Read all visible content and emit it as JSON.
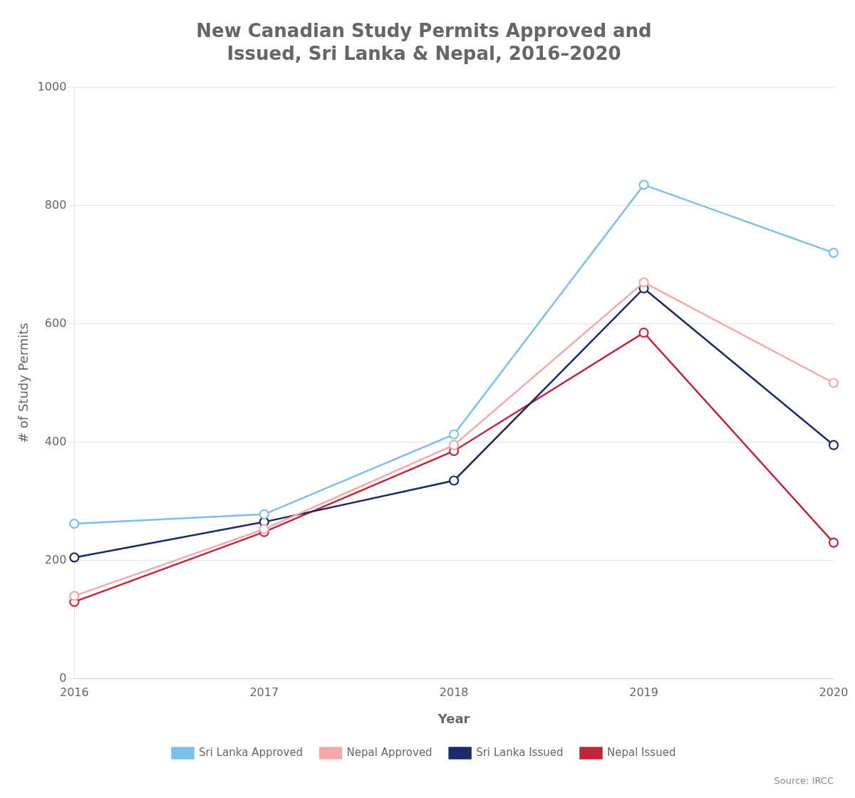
{
  "chart_data": {
    "type": "line",
    "title": "New Canadian Study Permits Approved and\nIssued, Sri Lanka & Nepal, 2016–2020",
    "x_label": "Year",
    "y_label": "# of Study Permits",
    "categories": [
      "2016",
      "2017",
      "2018",
      "2019",
      "2020"
    ],
    "series": [
      {
        "name": "Sri Lanka Approved",
        "color": "#7BBFEA",
        "marker": "circle",
        "values": [
          262,
          278,
          413,
          835,
          720
        ]
      },
      {
        "name": "Nepal Approved",
        "color": "#F4AAAA",
        "marker": "circle",
        "values": [
          140,
          253,
          395,
          670,
          500
        ]
      },
      {
        "name": "Sri Lanka Issued",
        "color": "#1B2A6B",
        "marker": "circle",
        "values": [
          205,
          265,
          335,
          660,
          395
        ]
      },
      {
        "name": "Nepal Issued",
        "color": "#C0273A",
        "marker": "circle",
        "values": [
          130,
          248,
          385,
          585,
          230
        ]
      }
    ],
    "ylim": [
      0,
      1000
    ],
    "yticks": [
      0,
      200,
      400,
      600,
      800,
      1000
    ],
    "grid": true,
    "legend": "bottom",
    "annotations": [
      "Source: IRCC"
    ]
  }
}
